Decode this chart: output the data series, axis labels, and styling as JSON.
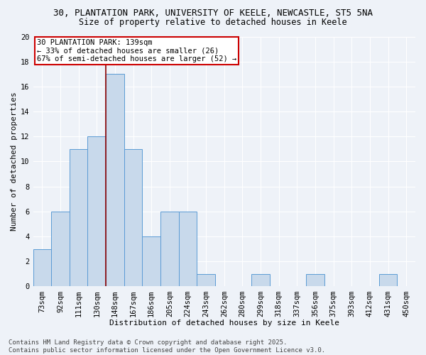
{
  "title1": "30, PLANTATION PARK, UNIVERSITY OF KEELE, NEWCASTLE, ST5 5NA",
  "title2": "Size of property relative to detached houses in Keele",
  "xlabel": "Distribution of detached houses by size in Keele",
  "ylabel": "Number of detached properties",
  "categories": [
    "73sqm",
    "92sqm",
    "111sqm",
    "130sqm",
    "148sqm",
    "167sqm",
    "186sqm",
    "205sqm",
    "224sqm",
    "243sqm",
    "262sqm",
    "280sqm",
    "299sqm",
    "318sqm",
    "337sqm",
    "356sqm",
    "375sqm",
    "393sqm",
    "412sqm",
    "431sqm",
    "450sqm"
  ],
  "values": [
    3,
    6,
    11,
    12,
    17,
    11,
    4,
    6,
    6,
    1,
    0,
    0,
    1,
    0,
    0,
    1,
    0,
    0,
    0,
    1,
    0
  ],
  "bar_color": "#c8d9eb",
  "bar_edge_color": "#5b9bd5",
  "redline_x": 3.5,
  "annotation_text": "30 PLANTATION PARK: 139sqm\n← 33% of detached houses are smaller (26)\n67% of semi-detached houses are larger (52) →",
  "annotation_box_color": "#ffffff",
  "annotation_box_edge": "#cc0000",
  "ylim": [
    0,
    20
  ],
  "yticks": [
    0,
    2,
    4,
    6,
    8,
    10,
    12,
    14,
    16,
    18,
    20
  ],
  "bg_color": "#eef2f8",
  "grid_color": "#ffffff",
  "footer": "Contains HM Land Registry data © Crown copyright and database right 2025.\nContains public sector information licensed under the Open Government Licence v3.0.",
  "title1_fontsize": 9,
  "title2_fontsize": 8.5,
  "xlabel_fontsize": 8,
  "ylabel_fontsize": 8,
  "tick_fontsize": 7.5,
  "annotation_fontsize": 7.5,
  "footer_fontsize": 6.5
}
